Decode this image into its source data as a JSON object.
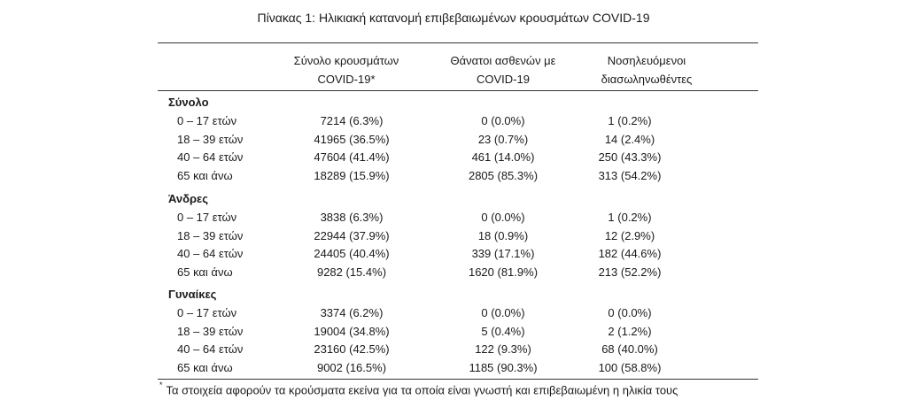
{
  "caption": "Πίνακας 1: Ηλικιακή κατανομή επιβεβαιωμένων κρουσμάτων COVID-19",
  "headers": {
    "col1_line1": "Σύνολο κρουσμάτων",
    "col1_line2": "COVID-19*",
    "col2_line1": "Θάνατοι ασθενών με",
    "col2_line2": "COVID-19",
    "col3_line1": "Νοσηλευόμενοι",
    "col3_line2": "διασωληνωθέντες"
  },
  "sections": [
    {
      "title": "Σύνολο",
      "rows": [
        {
          "label": "0 – 17 ετών",
          "cases": "7214 (6.3%)",
          "deaths": "0 (0.0%)",
          "intubated": "1 (0.2%)"
        },
        {
          "label": "18 – 39 ετών",
          "cases": "41965 (36.5%)",
          "deaths": "23 (0.7%)",
          "intubated": "14 (2.4%)"
        },
        {
          "label": "40 – 64 ετών",
          "cases": "47604 (41.4%)",
          "deaths": "461 (14.0%)",
          "intubated": "250 (43.3%)"
        },
        {
          "label": "65 και άνω",
          "cases": "18289 (15.9%)",
          "deaths": "2805 (85.3%)",
          "intubated": "313 (54.2%)"
        }
      ]
    },
    {
      "title": "Άνδρες",
      "rows": [
        {
          "label": "0 – 17 ετών",
          "cases": "3838 (6.3%)",
          "deaths": "0 (0.0%)",
          "intubated": "1 (0.2%)"
        },
        {
          "label": "18 – 39 ετών",
          "cases": "22944 (37.9%)",
          "deaths": "18 (0.9%)",
          "intubated": "12 (2.9%)"
        },
        {
          "label": "40 – 64 ετών",
          "cases": "24405 (40.4%)",
          "deaths": "339 (17.1%)",
          "intubated": "182 (44.6%)"
        },
        {
          "label": "65 και άνω",
          "cases": "9282 (15.4%)",
          "deaths": "1620 (81.9%)",
          "intubated": "213 (52.2%)"
        }
      ]
    },
    {
      "title": "Γυναίκες",
      "rows": [
        {
          "label": "0 – 17 ετών",
          "cases": "3374 (6.2%)",
          "deaths": "0 (0.0%)",
          "intubated": "0 (0.0%)"
        },
        {
          "label": "18 – 39 ετών",
          "cases": "19004 (34.8%)",
          "deaths": "5 (0.4%)",
          "intubated": "2 (1.2%)"
        },
        {
          "label": "40 – 64 ετών",
          "cases": "23160 (42.5%)",
          "deaths": "122 (9.3%)",
          "intubated": "68 (40.0%)"
        },
        {
          "label": "65 και άνω",
          "cases": "9002 (16.5%)",
          "deaths": "1185 (90.3%)",
          "intubated": "100 (58.8%)"
        }
      ]
    }
  ],
  "footnote": {
    "marker": "*",
    "text": "Τα στοιχεία αφορούν τα κρούσματα εκείνα για τα οποία είναι γνωστή και επιβεβαιωμένη η ηλικία τους"
  }
}
